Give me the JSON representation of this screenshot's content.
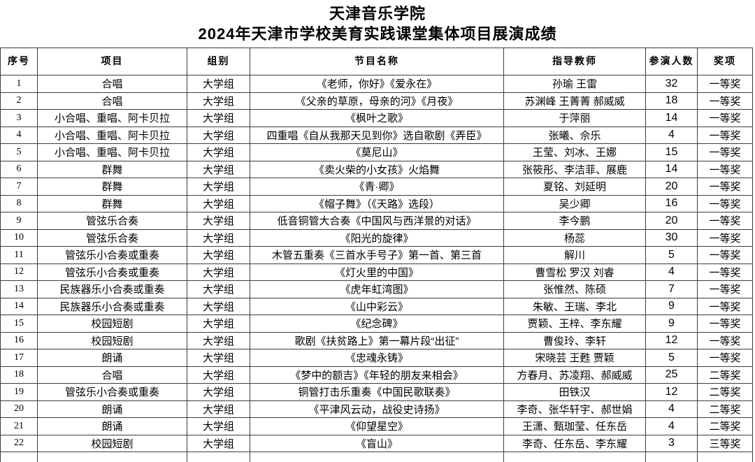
{
  "title": {
    "line1": "天津音乐学院",
    "line2": "2024年天津市学校美育实践课堂集体项目展演成绩"
  },
  "table": {
    "columns": [
      "序号",
      "项目",
      "组别",
      "节目名称",
      "指导教师",
      "参演人数",
      "奖项"
    ],
    "rows": [
      [
        "1",
        "合唱",
        "大学组",
        "《老师，你好》《爱永在》",
        "孙瑜 王雷",
        "32",
        "一等奖"
      ],
      [
        "2",
        "合唱",
        "大学组",
        "《父亲的草原，母亲的河》《月夜》",
        "苏渊峰 王菁菁 郝威威",
        "18",
        "一等奖"
      ],
      [
        "3",
        "小合唱、重唱、阿卡贝拉",
        "大学组",
        "《枫叶之歌》",
        "于萍丽",
        "14",
        "一等奖"
      ],
      [
        "4",
        "小合唱、重唱、阿卡贝拉",
        "大学组",
        "四重唱《自从我那天见到你》选自歌剧《弄臣》",
        "张曦、佘乐",
        "4",
        "一等奖"
      ],
      [
        "5",
        "小合唱、重唱、阿卡贝拉",
        "大学组",
        "《莫尼山》",
        "王莹、刘冰、王娜",
        "15",
        "一等奖"
      ],
      [
        "6",
        "群舞",
        "大学组",
        "《卖火柴的小女孩》火焰舞",
        "张筱彤、李洁菲、展鹿",
        "14",
        "一等奖"
      ],
      [
        "7",
        "群舞",
        "大学组",
        "《青·卿》",
        "夏铭、刘延明",
        "20",
        "一等奖"
      ],
      [
        "8",
        "群舞",
        "大学组",
        "《帽子舞》（《天路》选段）",
        "吴少卿",
        "16",
        "一等奖"
      ],
      [
        "9",
        "管弦乐合奏",
        "大学组",
        "低音铜管大合奏《中国风与西洋景的对话》",
        "李今鹏",
        "20",
        "一等奖"
      ],
      [
        "10",
        "管弦乐合奏",
        "大学组",
        "《阳光的旋律》",
        "杨蕊",
        "30",
        "一等奖"
      ],
      [
        "11",
        "管弦乐小合奏或重奏",
        "大学组",
        "木管五重奏《三首水手号子》第一首、第三首",
        "解川",
        "5",
        "一等奖"
      ],
      [
        "12",
        "管弦乐小合奏或重奏",
        "大学组",
        "《灯火里的中国》",
        "曹雪松 罗汉 刘睿",
        "4",
        "一等奖"
      ],
      [
        "13",
        "民族器乐小合奏或重奏",
        "大学组",
        "《虎年虹湾图》",
        "张惟然、陈硕",
        "7",
        "一等奖"
      ],
      [
        "14",
        "民族器乐小合奏或重奏",
        "大学组",
        "《山中彩云》",
        "朱敏、王瑞、李北",
        "9",
        "一等奖"
      ],
      [
        "15",
        "校园短剧",
        "大学组",
        "《纪念碑》",
        "贾颖、王梓、李东耀",
        "9",
        "一等奖"
      ],
      [
        "16",
        "校园短剧",
        "大学组",
        "歌剧《扶贫路上》第一幕片段“出征”",
        "曹俊玲、李轩",
        "12",
        "一等奖"
      ],
      [
        "17",
        "朗诵",
        "大学组",
        "《忠魂永铸》",
        "宋晓芸 王甦 贾颖",
        "5",
        "一等奖"
      ],
      [
        "18",
        "合唱",
        "大学组",
        "《梦中的额吉》《年轻的朋友来相会》",
        "方春月、苏凌翔、郝威威",
        "25",
        "二等奖"
      ],
      [
        "19",
        "管弦乐小合奏或重奏",
        "大学组",
        "铜管打击乐重奏《中国民歌联奏》",
        "田铁汉",
        "12",
        "二等奖"
      ],
      [
        "20",
        "朗诵",
        "大学组",
        "《平津风云动，战役史诗扬》",
        "李奇、张华轩宇、郝世娟",
        "4",
        "二等奖"
      ],
      [
        "21",
        "朗诵",
        "大学组",
        "《仰望星空》",
        "王潇、甄珈莹、任东岳",
        "4",
        "二等奖"
      ],
      [
        "22",
        "校园短剧",
        "大学组",
        "《盲山》",
        "李奇、任东岳、李东耀",
        "3",
        "三等奖"
      ]
    ]
  },
  "colors": {
    "border": "#3c3c3c",
    "text": "#000000",
    "background": "#ffffff"
  }
}
